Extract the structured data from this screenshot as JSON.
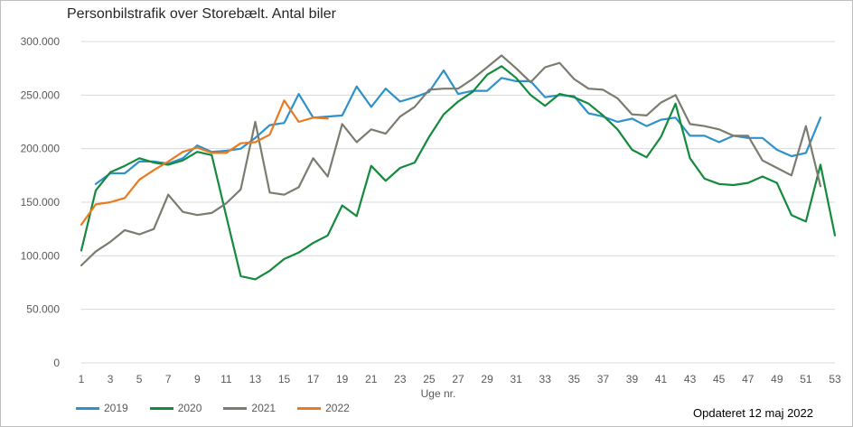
{
  "chart_data": {
    "type": "line",
    "title": "Personbilstrafik over Storebælt. Antal biler",
    "xlabel": "Uge nr.",
    "ylabel": "",
    "xlim": [
      1,
      53
    ],
    "ylim": [
      0,
      300000
    ],
    "x_ticks": [
      1,
      3,
      5,
      7,
      9,
      11,
      13,
      15,
      17,
      19,
      21,
      23,
      25,
      27,
      29,
      31,
      33,
      35,
      37,
      39,
      41,
      43,
      45,
      47,
      49,
      51,
      53
    ],
    "y_ticks": [
      {
        "value": 0,
        "label": "0"
      },
      {
        "value": 50000,
        "label": "50.000"
      },
      {
        "value": 100000,
        "label": "100.000"
      },
      {
        "value": 150000,
        "label": "150.000"
      },
      {
        "value": 200000,
        "label": "200.000"
      },
      {
        "value": 250000,
        "label": "250.000"
      },
      {
        "value": 300000,
        "label": "300.000"
      }
    ],
    "grid": "horizontal",
    "legend_position": "bottom-left",
    "series": [
      {
        "name": "2019",
        "color": "#2e92c9",
        "start_week": 2,
        "values": [
          167000,
          177000,
          177000,
          188000,
          188000,
          186000,
          191000,
          203000,
          197000,
          198000,
          200000,
          210000,
          222000,
          224000,
          251000,
          229000,
          230000,
          231000,
          258000,
          239000,
          256000,
          244000,
          248000,
          253000,
          273000,
          251000,
          254000,
          254000,
          266000,
          263000,
          263000,
          248000,
          250000,
          249000,
          233000,
          230000,
          225000,
          228000,
          221000,
          227000,
          229000,
          212000,
          212000,
          206000,
          212000,
          210000,
          210000,
          199000,
          193000,
          196000,
          229000
        ]
      },
      {
        "name": "2020",
        "color": "#138a3c",
        "start_week": 1,
        "values": [
          105000,
          161000,
          178000,
          184000,
          191000,
          187000,
          185000,
          189000,
          197000,
          194000,
          137000,
          81000,
          78000,
          86000,
          97000,
          103000,
          112000,
          119000,
          147000,
          137000,
          184000,
          170000,
          182000,
          187000,
          211000,
          232000,
          244000,
          253000,
          269000,
          277000,
          266000,
          250000,
          240000,
          251000,
          248000,
          242000,
          231000,
          218000,
          199000,
          192000,
          211000,
          242000,
          191000,
          172000,
          167000,
          166000,
          168000,
          174000,
          168000,
          138000,
          132000,
          185000,
          119000
        ]
      },
      {
        "name": "2021",
        "color": "#7b7b70",
        "start_week": 1,
        "values": [
          91000,
          104000,
          113000,
          124000,
          120000,
          125000,
          157000,
          141000,
          138000,
          140000,
          149000,
          162000,
          225000,
          159000,
          157000,
          164000,
          191000,
          174000,
          223000,
          206000,
          218000,
          214000,
          230000,
          239000,
          255000,
          256000,
          256000,
          265000,
          276000,
          287000,
          275000,
          262000,
          276000,
          280000,
          265000,
          256000,
          255000,
          247000,
          232000,
          231000,
          243000,
          250000,
          223000,
          221000,
          218000,
          212000,
          212000,
          189000,
          182000,
          175000,
          221000,
          165000
        ]
      },
      {
        "name": "2022",
        "color": "#ea7a1f",
        "start_week": 1,
        "values": [
          129000,
          148000,
          150000,
          154000,
          171000,
          180000,
          188000,
          197000,
          201000,
          196000,
          196000,
          205000,
          206000,
          213000,
          245000,
          225000,
          229000,
          228000
        ]
      }
    ],
    "annotation": "Opdateret 12 maj 2022"
  }
}
